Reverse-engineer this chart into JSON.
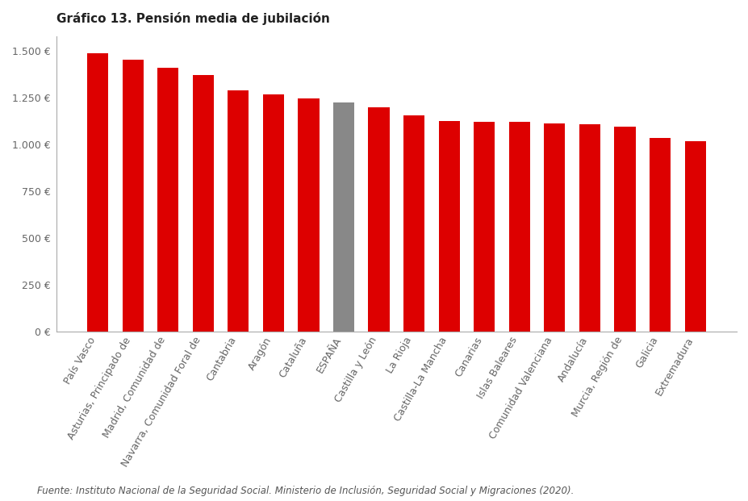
{
  "title": "Gráfico 13. Pensión media de jubilación",
  "footnote": "Fuente: Instituto Nacional de la Seguridad Social. Ministerio de Inclusión, Seguridad Social y Migraciones (2020).",
  "categories": [
    "País Vasco",
    "Asturias, Principado de",
    "Madrid, Comunidad de",
    "Navarra, Comunidad Foral de",
    "Cantabria",
    "Aragón",
    "Cataluña",
    "ESPAÑA",
    "Castilla y León",
    "La Rioja",
    "Castilla-La Mancha",
    "Canarias",
    "Islas Baleares",
    "Comunidad Valenciana",
    "Andalucía",
    "Murcia, Región de",
    "Galicia",
    "Extremadura"
  ],
  "values": [
    1490,
    1455,
    1410,
    1370,
    1290,
    1270,
    1245,
    1225,
    1200,
    1155,
    1125,
    1120,
    1120,
    1115,
    1110,
    1095,
    1035,
    1020
  ],
  "bar_colors": [
    "#dd0000",
    "#dd0000",
    "#dd0000",
    "#dd0000",
    "#dd0000",
    "#dd0000",
    "#dd0000",
    "#888888",
    "#dd0000",
    "#dd0000",
    "#dd0000",
    "#dd0000",
    "#dd0000",
    "#dd0000",
    "#dd0000",
    "#dd0000",
    "#dd0000",
    "#dd0000"
  ],
  "yticks": [
    0,
    250,
    500,
    750,
    1000,
    1250,
    1500
  ],
  "ytick_labels": [
    "0 €",
    "250 €",
    "500 €",
    "750 €",
    "1.000 €",
    "1.250 €",
    "1.500 €"
  ],
  "ylim": [
    0,
    1580
  ],
  "background_color": "#ffffff",
  "title_fontsize": 11,
  "tick_fontsize": 9,
  "footnote_fontsize": 8.5,
  "bar_width": 0.6
}
